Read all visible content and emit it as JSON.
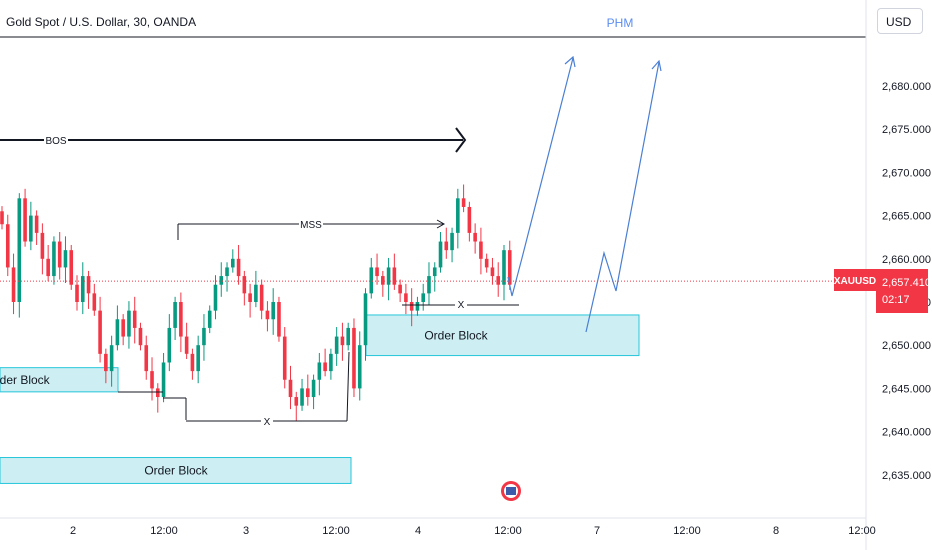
{
  "header": {
    "symbol_title": "Gold Spot / U.S. Dollar, 30, OANDA",
    "watermark": "PHM",
    "currency_button": "USD"
  },
  "price_badge": {
    "symbol": "XAUUSD",
    "price": "2,657.410",
    "countdown": "02:17",
    "color": "#f23645"
  },
  "annotations": {
    "bos": "BOS",
    "mss": "MSS",
    "x_mark": "X",
    "order_block": "Order Block"
  },
  "colors": {
    "up": "#089981",
    "down": "#f23645",
    "zone_fill": "#cdeff3",
    "zone_border": "#26c6da",
    "projection": "#4a7fd4",
    "watermark": "#5b8def"
  },
  "chart_data": {
    "type": "candlestick",
    "y_axis": {
      "ticks": [
        "2,680.000",
        "2,675.000",
        "2,670.000",
        "2,665.000",
        "2,660.000",
        "2,655.000",
        "2,650.000",
        "2,645.000",
        "2,640.000",
        "2,635.000"
      ],
      "range": [
        2631.8,
        2684.6
      ]
    },
    "x_axis": {
      "ticks": [
        "2",
        "12:00",
        "3",
        "12:00",
        "4",
        "12:00",
        "7",
        "12:00",
        "8",
        "12:00"
      ]
    },
    "last_price": 2657.41,
    "closes": [
      2664,
      2659,
      2655,
      2667,
      2662,
      2665,
      2663,
      2660,
      2658,
      2662,
      2659,
      2661,
      2657,
      2655,
      2658,
      2656,
      2654,
      2649,
      2647,
      2650,
      2653,
      2651,
      2654,
      2652,
      2650,
      2647,
      2645,
      2644,
      2648,
      2652,
      2655,
      2651,
      2649,
      2647,
      2650,
      2652,
      2654,
      2657,
      2658,
      2659,
      2660,
      2658,
      2656,
      2655,
      2657,
      2654,
      2653,
      2655,
      2651,
      2646,
      2644,
      2643,
      2645,
      2644,
      2646,
      2648,
      2647,
      2649,
      2651,
      2650,
      2652,
      2645,
      2650,
      2656,
      2659,
      2658,
      2657,
      2659,
      2657,
      2656,
      2655,
      2654,
      2655,
      2656,
      2658,
      2659,
      2662,
      2661,
      2663,
      2667,
      2666,
      2663,
      2662,
      2660,
      2659,
      2658,
      2657,
      2661,
      2657
    ],
    "ranges": [
      {
        "label": "Order Block",
        "from": 2644.6,
        "to": 2647.4
      },
      {
        "label": "Order Block",
        "from": 2634.0,
        "to": 2637.0
      },
      {
        "label": "Order Block",
        "from": 2648.8,
        "to": 2653.5
      }
    ]
  }
}
